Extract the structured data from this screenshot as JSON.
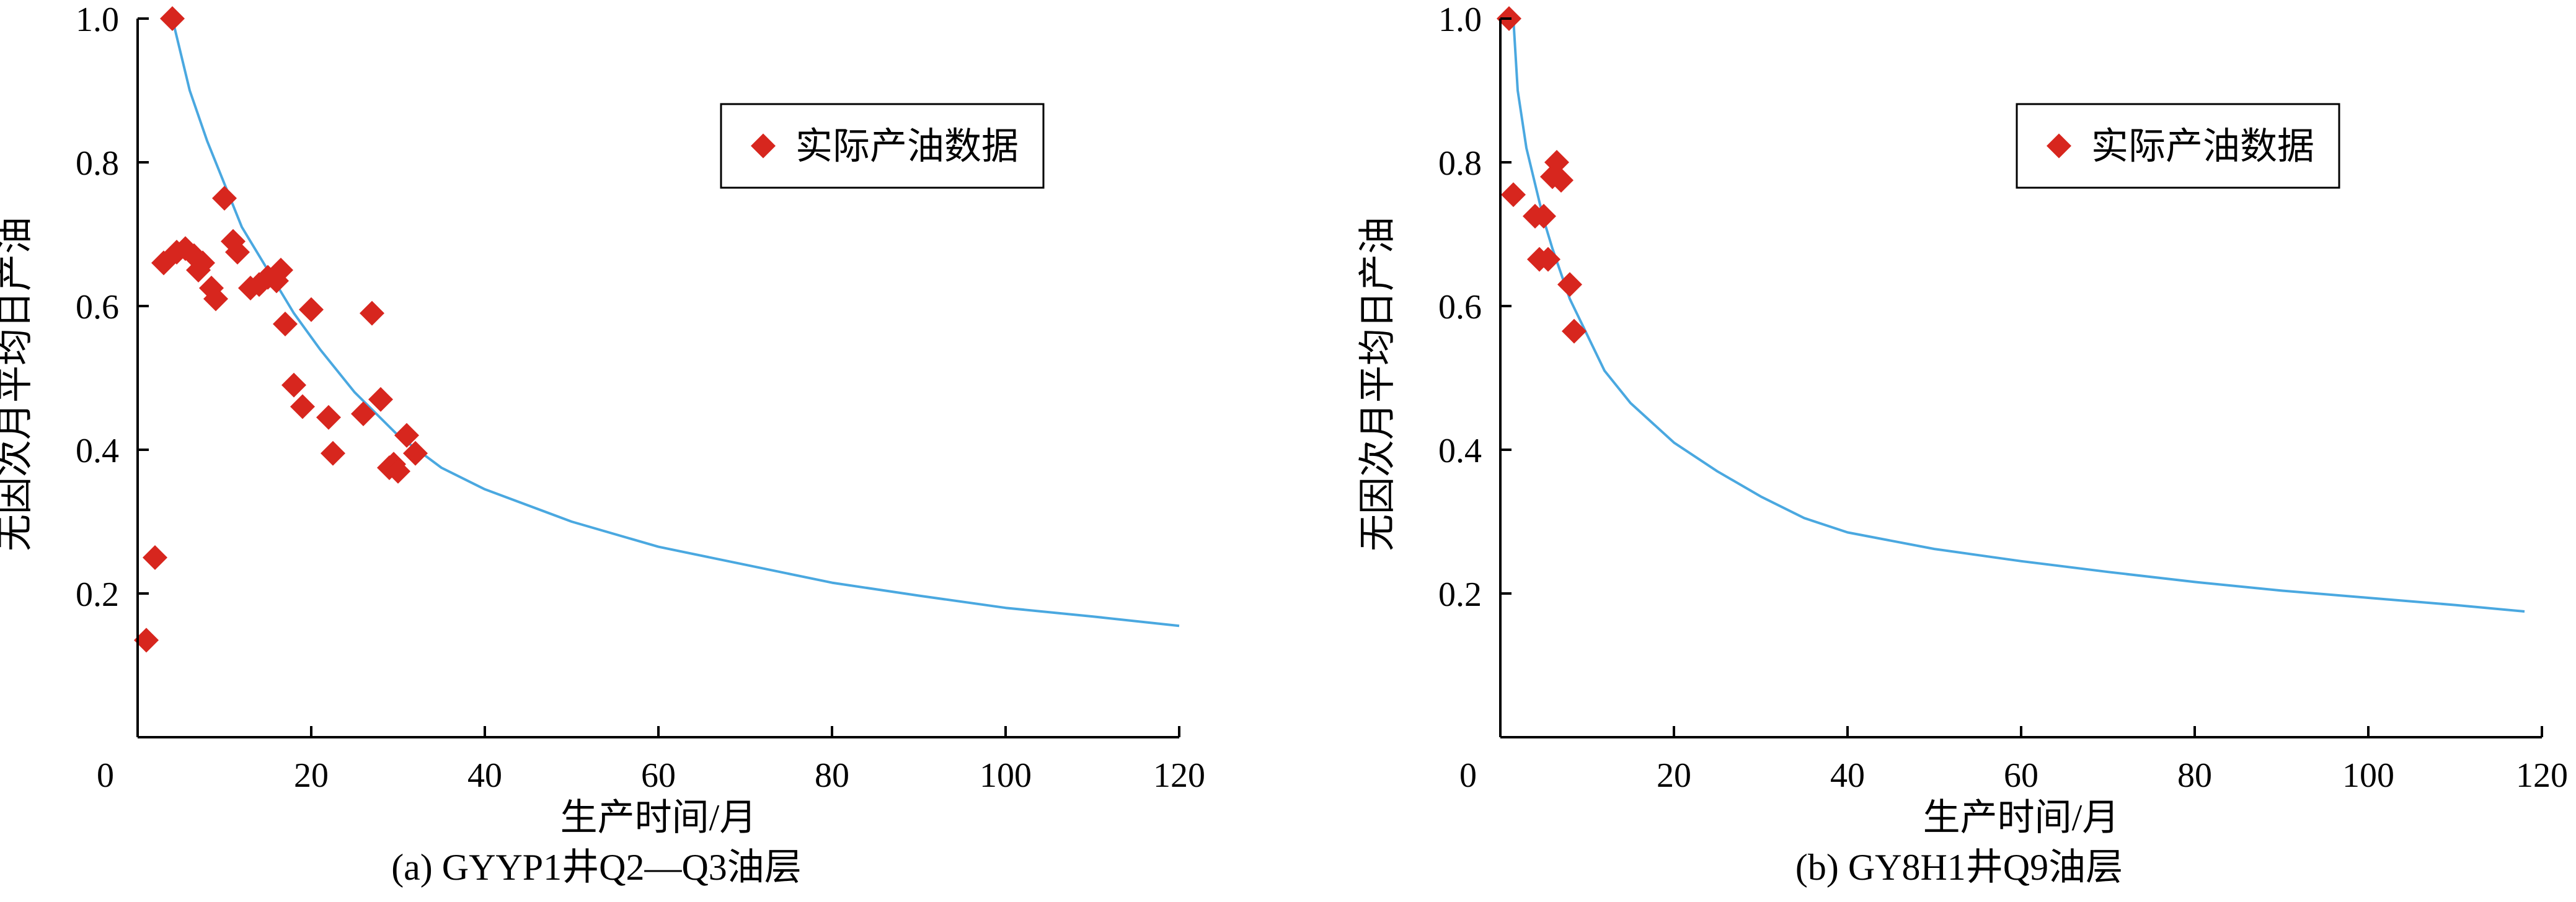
{
  "chart_data": [
    {
      "type": "scatter",
      "title": "",
      "caption": "(a) GYYP1井Q2—Q3油层",
      "xlabel": "生产时间/月",
      "ylabel": "无因次月平均日产油",
      "xlim": [
        0,
        120
      ],
      "ylim": [
        0,
        1.0
      ],
      "x_ticks": [
        0,
        20,
        40,
        60,
        80,
        100,
        120
      ],
      "y_ticks": [
        0.2,
        0.4,
        0.6,
        0.8,
        1.0
      ],
      "y_tick_labels": [
        "0.2",
        "0.4",
        "0.6",
        "0.8",
        "1.0"
      ],
      "legend": {
        "position": "top-right",
        "entries": [
          "实际产油数据"
        ]
      },
      "colors": {
        "marker": "#d7261e",
        "curve": "#4aa8e0"
      },
      "series": [
        {
          "name": "实际产油数据",
          "kind": "scatter",
          "x": [
            1,
            2,
            3,
            4,
            4.5,
            5.5,
            6.5,
            7,
            7.5,
            8.5,
            9,
            10,
            11,
            11.5,
            13,
            14,
            15,
            16,
            16.5,
            17,
            18,
            19,
            20,
            22,
            22.5,
            26,
            27,
            28,
            29,
            29.5,
            30,
            31,
            32
          ],
          "y": [
            0.135,
            0.25,
            0.66,
            1.0,
            0.675,
            0.68,
            0.67,
            0.65,
            0.66,
            0.625,
            0.61,
            0.75,
            0.69,
            0.675,
            0.625,
            0.63,
            0.64,
            0.635,
            0.65,
            0.575,
            0.49,
            0.46,
            0.595,
            0.445,
            0.395,
            0.45,
            0.59,
            0.47,
            0.375,
            0.38,
            0.37,
            0.42,
            0.395
          ]
        },
        {
          "kind": "line",
          "x": [
            4,
            6,
            8,
            10,
            12,
            15,
            18,
            21,
            25,
            30,
            35,
            40,
            50,
            60,
            70,
            80,
            90,
            100,
            110,
            120
          ],
          "y": [
            1.0,
            0.9,
            0.83,
            0.77,
            0.71,
            0.65,
            0.59,
            0.54,
            0.48,
            0.42,
            0.375,
            0.345,
            0.3,
            0.265,
            0.24,
            0.215,
            0.197,
            0.18,
            0.168,
            0.155
          ]
        }
      ]
    },
    {
      "type": "scatter",
      "title": "",
      "caption": "(b) GY8H1井Q9油层",
      "xlabel": "生产时间/月",
      "ylabel": "无因次月平均日产油",
      "xlim": [
        0,
        120
      ],
      "ylim": [
        0,
        1.0
      ],
      "x_ticks": [
        0,
        20,
        40,
        60,
        80,
        100,
        120
      ],
      "y_ticks": [
        0.2,
        0.4,
        0.6,
        0.8,
        1.0
      ],
      "y_tick_labels": [
        "0.2",
        "0.4",
        "0.6",
        "0.8",
        "1.0"
      ],
      "legend": {
        "position": "top-right",
        "entries": [
          "实际产油数据"
        ]
      },
      "colors": {
        "marker": "#d7261e",
        "curve": "#4aa8e0"
      },
      "series": [
        {
          "name": "实际产油数据",
          "kind": "scatter",
          "x": [
            1,
            1.5,
            4,
            4.5,
            5,
            5.5,
            6,
            6.5,
            7,
            8,
            8.5
          ],
          "y": [
            1.0,
            0.755,
            0.725,
            0.665,
            0.725,
            0.665,
            0.78,
            0.8,
            0.775,
            0.63,
            0.565
          ]
        },
        {
          "kind": "line",
          "x": [
            1.5,
            2,
            3,
            4,
            5,
            6,
            8,
            10,
            12,
            15,
            20,
            25,
            30,
            35,
            40,
            50,
            60,
            70,
            80,
            90,
            100,
            110,
            118
          ],
          "y": [
            1.0,
            0.9,
            0.82,
            0.77,
            0.72,
            0.68,
            0.61,
            0.56,
            0.51,
            0.465,
            0.41,
            0.37,
            0.335,
            0.305,
            0.285,
            0.262,
            0.245,
            0.23,
            0.216,
            0.204,
            0.194,
            0.184,
            0.175
          ]
        }
      ]
    }
  ]
}
